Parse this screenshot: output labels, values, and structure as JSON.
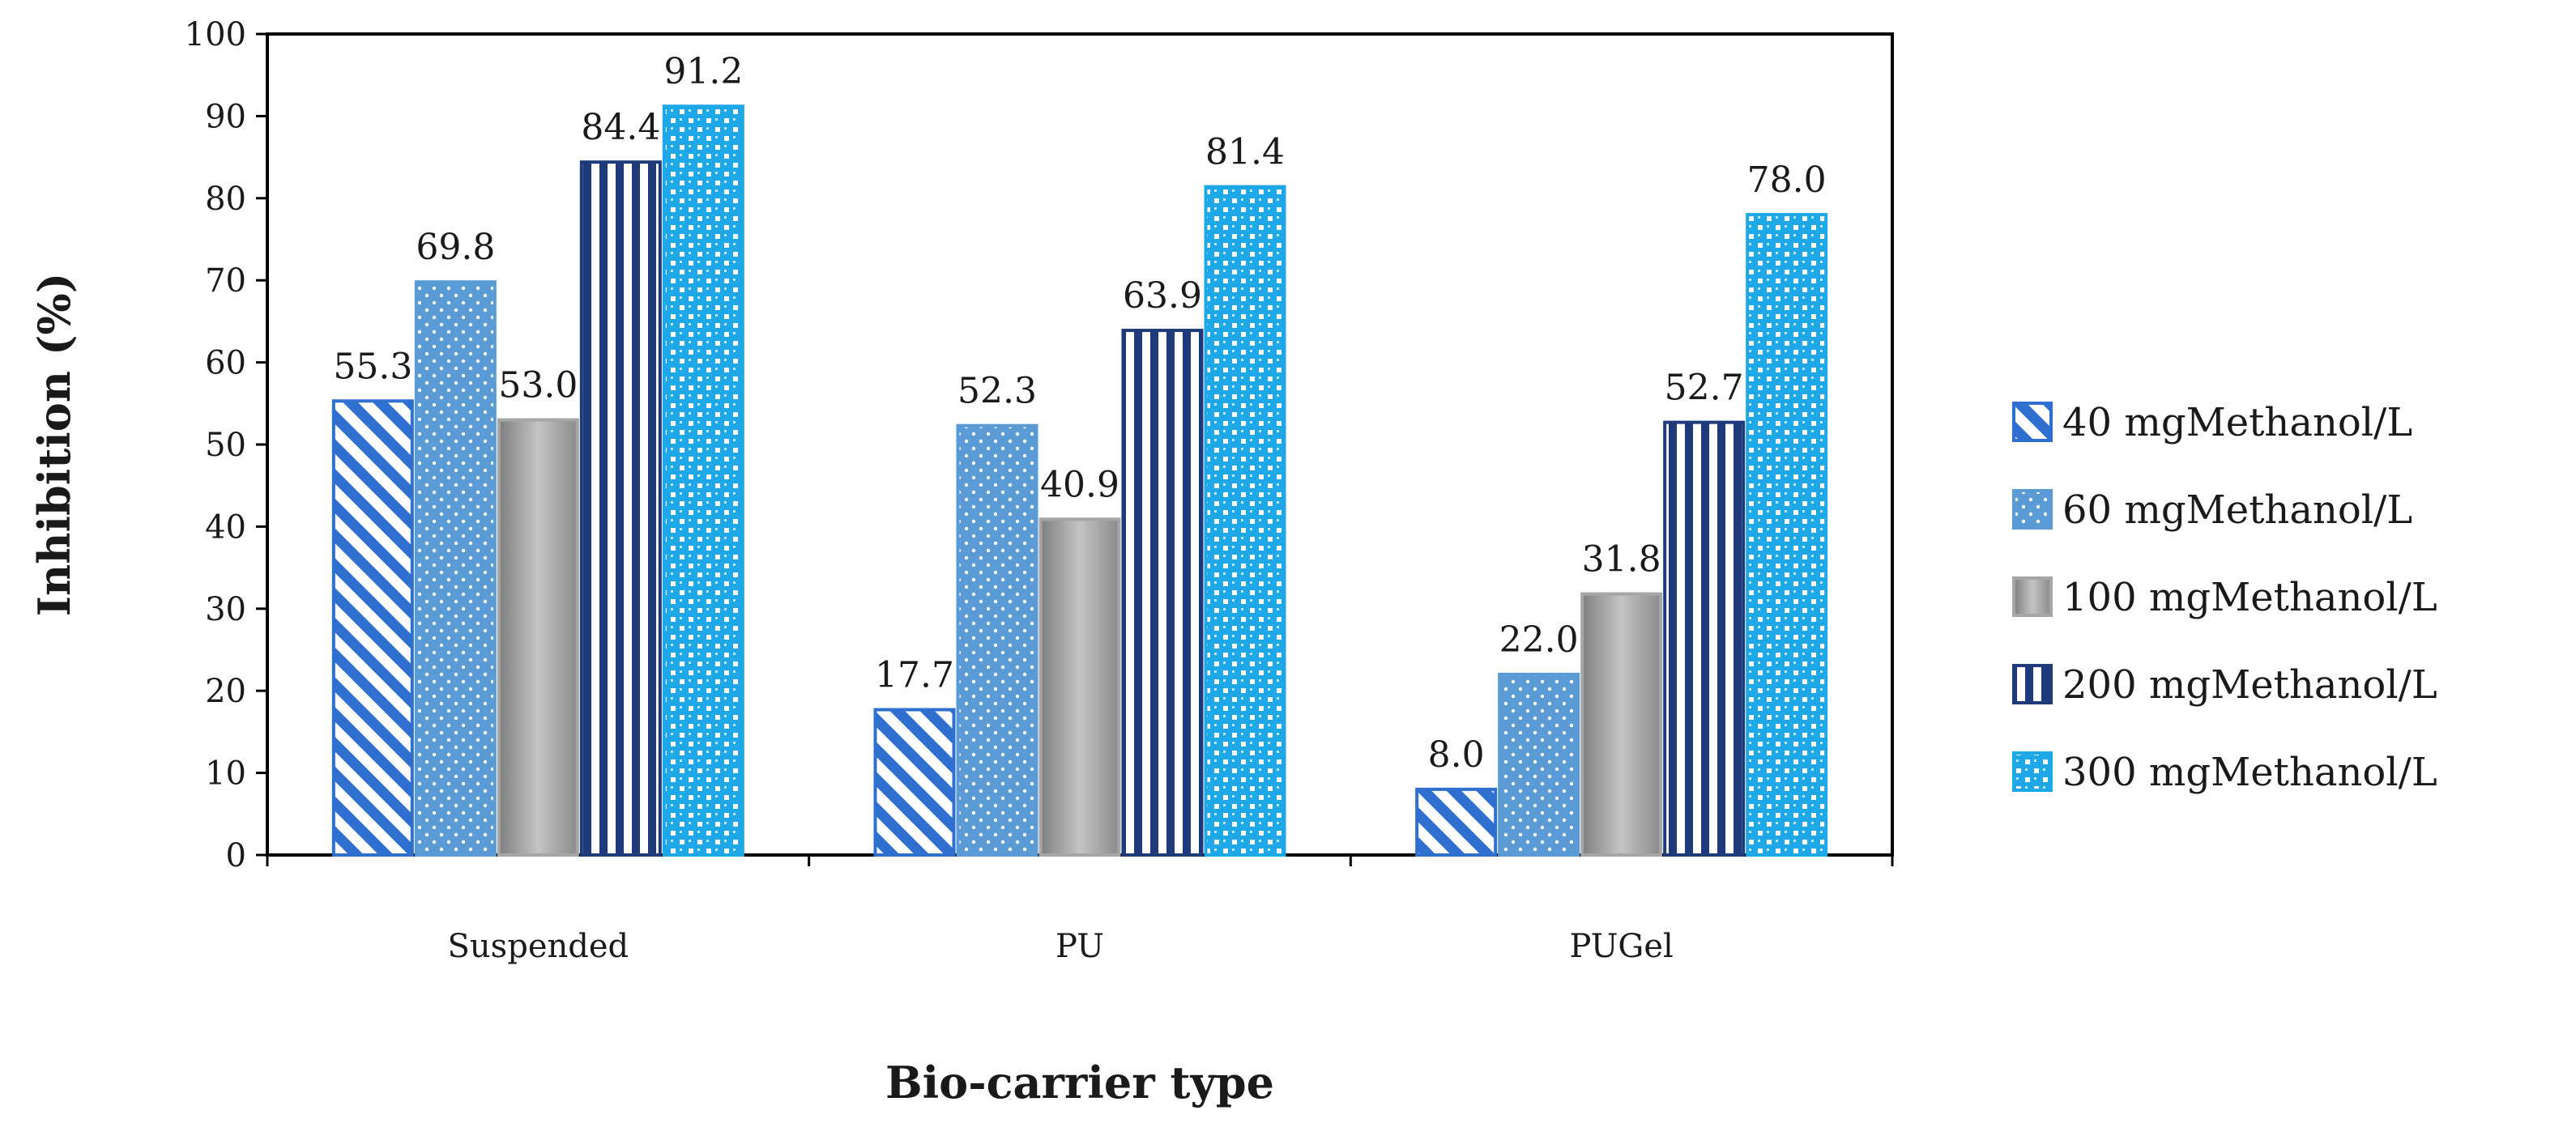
{
  "chart_data": {
    "type": "bar",
    "title": "",
    "xlabel": "Bio-carrier type",
    "ylabel": "Inhibition (%)",
    "ylim": [
      0,
      100
    ],
    "yticks": [
      0,
      10,
      20,
      30,
      40,
      50,
      60,
      70,
      80,
      90,
      100
    ],
    "grid": false,
    "legend_position": "right",
    "categories": [
      "Suspended",
      "PU",
      "PUGel"
    ],
    "series": [
      {
        "name": "40  mgMethanol/L",
        "values": [
          55.3,
          17.7,
          8.0
        ],
        "labels": [
          "55.3",
          "17.7",
          "8.0"
        ],
        "color": "#2E6FD0",
        "pattern": "diagonal-stripes"
      },
      {
        "name": "60  mgMethanol/L",
        "values": [
          69.8,
          52.3,
          22.0
        ],
        "labels": [
          "69.8",
          "52.3",
          "22.0"
        ],
        "color": "#5B9BD5",
        "pattern": "dots"
      },
      {
        "name": "100 mgMethanol/L",
        "values": [
          53.0,
          40.9,
          31.8
        ],
        "labels": [
          "53.0",
          "40.9",
          "31.8"
        ],
        "color": "#A6A6A6",
        "pattern": "gradient"
      },
      {
        "name": "200 mgMethanol/L",
        "values": [
          84.4,
          63.9,
          52.7
        ],
        "labels": [
          "84.4",
          "63.9",
          "52.7"
        ],
        "color": "#1F3A7A",
        "pattern": "vertical-stripes"
      },
      {
        "name": "300 mgMethanol/L",
        "values": [
          91.2,
          81.4,
          78.0
        ],
        "labels": [
          "91.2",
          "81.4",
          "78.0"
        ],
        "color": "#1FA8E8",
        "pattern": "checker"
      }
    ]
  }
}
